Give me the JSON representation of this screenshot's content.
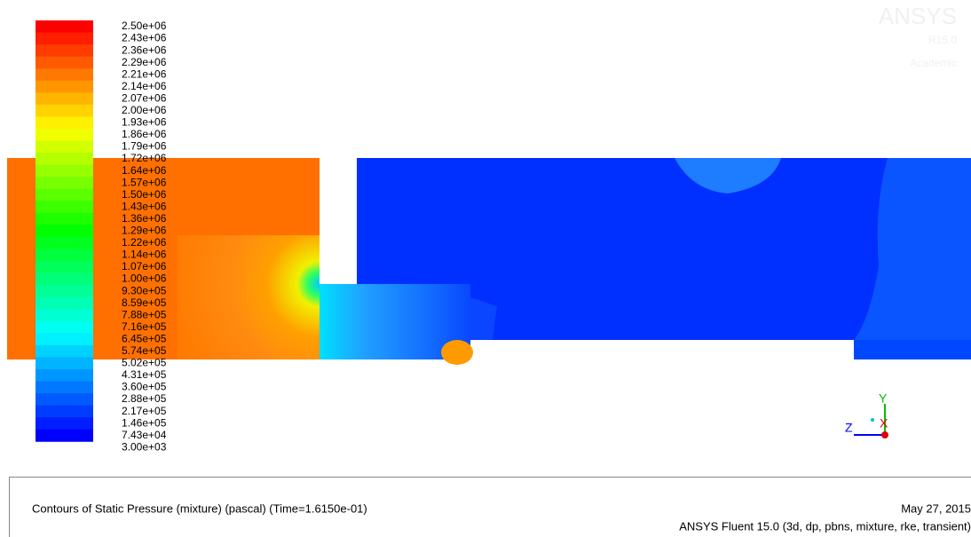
{
  "colorbar": {
    "labels": [
      "2.50e+06",
      "2.43e+06",
      "2.36e+06",
      "2.29e+06",
      "2.21e+06",
      "2.14e+06",
      "2.07e+06",
      "2.00e+06",
      "1.93e+06",
      "1.86e+06",
      "1.79e+06",
      "1.72e+06",
      "1.64e+06",
      "1.57e+06",
      "1.50e+06",
      "1.43e+06",
      "1.36e+06",
      "1.29e+06",
      "1.22e+06",
      "1.14e+06",
      "1.07e+06",
      "1.00e+06",
      "9.30e+05",
      "8.59e+05",
      "7.88e+05",
      "7.16e+05",
      "6.45e+05",
      "5.74e+05",
      "5.02e+05",
      "4.31e+05",
      "3.60e+05",
      "2.88e+05",
      "2.17e+05",
      "1.46e+05",
      "7.43e+04",
      "3.00e+03"
    ]
  },
  "watermark": {
    "brand": "ANSYS",
    "version": "R15.0",
    "license": "Academic"
  },
  "axes": {
    "y": "Y",
    "z": "Z",
    "x": "X"
  },
  "footer": {
    "caption": "Contours of Static Pressure (mixture)  (pascal)  (Time=1.6150e-01)",
    "date": "May 27, 2015",
    "software": "ANSYS Fluent 15.0 (3d, dp, pbns, mixture, rke, transient)"
  }
}
